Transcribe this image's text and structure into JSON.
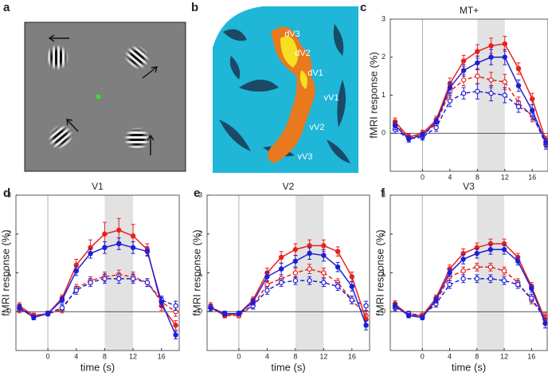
{
  "panels": {
    "a": {
      "label": "a"
    },
    "b": {
      "label": "b",
      "areas": [
        "dV3",
        "dV2",
        "dV1",
        "vV1",
        "vV2",
        "vV3"
      ]
    }
  },
  "chart_data": [
    {
      "type": "line",
      "panel": "c",
      "title": "MT+",
      "ylabel": "fMRI response (%)",
      "x": [
        -4,
        -2,
        0,
        2,
        4,
        6,
        8,
        10,
        12,
        14,
        16,
        18
      ],
      "xlim": [
        -4.7,
        18.3
      ],
      "xticks": [
        0,
        4,
        8,
        12,
        16
      ],
      "ylim": [
        -1,
        3
      ],
      "yticks": [
        0,
        1,
        2,
        3
      ],
      "highlight_x": [
        8,
        12
      ],
      "series": [
        {
          "color": "#e8201e",
          "dash": true,
          "values": [
            0.25,
            -0.1,
            -0.05,
            0.25,
            1.1,
            1.4,
            1.5,
            1.4,
            1.35,
            0.8,
            0.45,
            -0.2
          ],
          "errors": [
            0.1,
            0.08,
            0.08,
            0.1,
            0.15,
            0.15,
            0.2,
            0.2,
            0.2,
            0.15,
            0.15,
            0.12
          ]
        },
        {
          "color": "#1f1fd6",
          "dash": true,
          "values": [
            0.1,
            -0.15,
            -0.1,
            0.15,
            0.85,
            1.05,
            1.1,
            1.05,
            1.0,
            0.7,
            0.5,
            -0.3
          ],
          "errors": [
            0.1,
            0.08,
            0.08,
            0.1,
            0.15,
            0.15,
            0.2,
            0.2,
            0.2,
            0.15,
            0.15,
            0.12
          ]
        },
        {
          "color": "#e8201e",
          "dash": false,
          "values": [
            0.3,
            -0.1,
            0.0,
            0.35,
            1.3,
            1.9,
            2.15,
            2.3,
            2.35,
            1.7,
            0.9,
            -0.2
          ],
          "errors": [
            0.1,
            0.08,
            0.08,
            0.1,
            0.15,
            0.15,
            0.18,
            0.2,
            0.2,
            0.15,
            0.15,
            0.12
          ]
        },
        {
          "color": "#1f1fd6",
          "dash": false,
          "values": [
            0.2,
            -0.15,
            -0.05,
            0.3,
            1.2,
            1.65,
            1.85,
            2.0,
            2.0,
            1.25,
            0.6,
            -0.25
          ],
          "errors": [
            0.1,
            0.08,
            0.08,
            0.1,
            0.15,
            0.15,
            0.18,
            0.2,
            0.2,
            0.15,
            0.15,
            0.12
          ]
        }
      ]
    },
    {
      "type": "line",
      "panel": "d",
      "title": "V1",
      "ylabel": "fMRI response (%)",
      "xlabel": "time (s)",
      "x": [
        -4,
        -2,
        0,
        2,
        4,
        6,
        8,
        10,
        12,
        14,
        16,
        18
      ],
      "xlim": [
        -4.5,
        18.5
      ],
      "xticks": [
        0,
        4,
        8,
        12,
        16
      ],
      "ylim": [
        -1,
        3
      ],
      "yticks": [
        0,
        1,
        2,
        3
      ],
      "highlight_x": [
        8,
        12
      ],
      "series": [
        {
          "color": "#e8201e",
          "dash": true,
          "values": [
            0.05,
            -0.1,
            -0.05,
            0.05,
            0.6,
            0.8,
            0.9,
            0.95,
            0.9,
            0.75,
            0.25,
            0.0
          ],
          "errors": [
            0.08,
            0.06,
            0.06,
            0.08,
            0.1,
            0.1,
            0.12,
            0.12,
            0.12,
            0.1,
            0.1,
            0.12
          ]
        },
        {
          "color": "#1f1fd6",
          "dash": true,
          "values": [
            0.1,
            -0.1,
            -0.05,
            0.1,
            0.55,
            0.75,
            0.85,
            0.85,
            0.85,
            0.75,
            0.3,
            0.15
          ],
          "errors": [
            0.08,
            0.06,
            0.06,
            0.08,
            0.1,
            0.1,
            0.12,
            0.12,
            0.12,
            0.1,
            0.1,
            0.12
          ]
        },
        {
          "color": "#e8201e",
          "dash": false,
          "values": [
            0.15,
            -0.1,
            -0.05,
            0.35,
            1.2,
            1.65,
            2.0,
            2.1,
            1.95,
            1.6,
            0.15,
            -0.35
          ],
          "errors": [
            0.08,
            0.06,
            0.06,
            0.08,
            0.15,
            0.2,
            0.3,
            0.3,
            0.3,
            0.15,
            0.12,
            0.12
          ]
        },
        {
          "color": "#1f1fd6",
          "dash": false,
          "values": [
            0.1,
            -0.15,
            -0.05,
            0.3,
            1.05,
            1.5,
            1.65,
            1.75,
            1.65,
            1.55,
            0.25,
            -0.6
          ],
          "errors": [
            0.08,
            0.06,
            0.06,
            0.08,
            0.12,
            0.12,
            0.15,
            0.15,
            0.15,
            0.12,
            0.12,
            0.1
          ]
        }
      ]
    },
    {
      "type": "line",
      "panel": "e",
      "title": "V2",
      "ylabel": "fMRI response (%)",
      "xlabel": "time (s)",
      "x": [
        -4,
        -2,
        0,
        2,
        4,
        6,
        8,
        10,
        12,
        14,
        16,
        18
      ],
      "xlim": [
        -4.5,
        18.5
      ],
      "xticks": [
        0,
        4,
        8,
        12,
        16
      ],
      "ylim": [
        -1,
        3
      ],
      "yticks": [
        0,
        1,
        2,
        3
      ],
      "highlight_x": [
        8,
        12
      ],
      "series": [
        {
          "color": "#e8201e",
          "dash": true,
          "values": [
            0.15,
            -0.1,
            -0.1,
            0.15,
            0.7,
            0.85,
            1.0,
            1.1,
            1.0,
            0.75,
            0.3,
            -0.1
          ],
          "errors": [
            0.08,
            0.06,
            0.06,
            0.08,
            0.1,
            0.1,
            0.12,
            0.12,
            0.12,
            0.1,
            0.1,
            0.12
          ]
        },
        {
          "color": "#1f1fd6",
          "dash": true,
          "values": [
            0.1,
            -0.05,
            -0.05,
            0.15,
            0.55,
            0.75,
            0.8,
            0.8,
            0.75,
            0.65,
            0.3,
            0.15
          ],
          "errors": [
            0.08,
            0.06,
            0.06,
            0.08,
            0.1,
            0.1,
            0.1,
            0.1,
            0.1,
            0.1,
            0.1,
            0.12
          ]
        },
        {
          "color": "#e8201e",
          "dash": false,
          "values": [
            0.1,
            -0.1,
            -0.05,
            0.3,
            1.0,
            1.4,
            1.6,
            1.7,
            1.7,
            1.55,
            0.9,
            -0.2
          ],
          "errors": [
            0.08,
            0.06,
            0.06,
            0.08,
            0.12,
            0.15,
            0.15,
            0.15,
            0.15,
            0.12,
            0.12,
            0.12
          ]
        },
        {
          "color": "#1f1fd6",
          "dash": false,
          "values": [
            0.1,
            -0.05,
            -0.05,
            0.25,
            0.9,
            1.1,
            1.3,
            1.5,
            1.45,
            1.15,
            0.65,
            -0.35
          ],
          "errors": [
            0.08,
            0.06,
            0.06,
            0.08,
            0.12,
            0.15,
            0.15,
            0.15,
            0.15,
            0.12,
            0.12,
            0.12
          ]
        }
      ]
    },
    {
      "type": "line",
      "panel": "f",
      "title": "V3",
      "ylabel": "fMRI response (%)",
      "xlabel": "time (s)",
      "x": [
        -4,
        -2,
        0,
        2,
        4,
        6,
        8,
        10,
        12,
        14,
        16,
        18
      ],
      "xlim": [
        -4.7,
        18.3
      ],
      "xticks": [
        0,
        4,
        8,
        12,
        16
      ],
      "ylim": [
        -1,
        3
      ],
      "yticks": [
        0,
        1,
        2,
        3
      ],
      "highlight_x": [
        8,
        12
      ],
      "series": [
        {
          "color": "#e8201e",
          "dash": true,
          "values": [
            0.15,
            -0.05,
            -0.1,
            0.25,
            0.9,
            1.05,
            1.15,
            1.15,
            1.05,
            0.75,
            0.3,
            -0.15
          ],
          "errors": [
            0.08,
            0.06,
            0.06,
            0.08,
            0.1,
            0.1,
            0.1,
            0.1,
            0.1,
            0.1,
            0.1,
            0.12
          ]
        },
        {
          "color": "#1f1fd6",
          "dash": true,
          "values": [
            0.1,
            -0.05,
            -0.1,
            0.2,
            0.7,
            0.85,
            0.85,
            0.85,
            0.8,
            0.7,
            0.35,
            -0.2
          ],
          "errors": [
            0.08,
            0.06,
            0.06,
            0.08,
            0.1,
            0.1,
            0.1,
            0.1,
            0.1,
            0.1,
            0.1,
            0.12
          ]
        },
        {
          "color": "#e8201e",
          "dash": false,
          "values": [
            0.2,
            -0.1,
            -0.1,
            0.35,
            1.1,
            1.5,
            1.65,
            1.75,
            1.75,
            1.4,
            0.65,
            -0.2
          ],
          "errors": [
            0.08,
            0.06,
            0.06,
            0.08,
            0.1,
            0.12,
            0.12,
            0.12,
            0.12,
            0.1,
            0.1,
            0.12
          ]
        },
        {
          "color": "#1f1fd6",
          "dash": false,
          "values": [
            0.15,
            -0.1,
            -0.15,
            0.3,
            1.0,
            1.35,
            1.5,
            1.6,
            1.6,
            1.3,
            0.6,
            -0.3
          ],
          "errors": [
            0.08,
            0.06,
            0.06,
            0.08,
            0.1,
            0.12,
            0.12,
            0.12,
            0.12,
            0.1,
            0.1,
            0.12
          ]
        }
      ]
    }
  ]
}
